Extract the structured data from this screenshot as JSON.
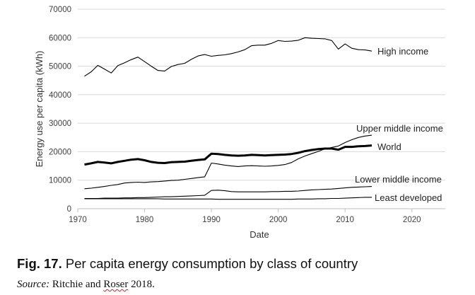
{
  "chart_data": {
    "type": "line",
    "xlabel": "Date",
    "ylabel": "Energy use per capita (kWh)",
    "xlim": [
      1970,
      2025
    ],
    "ylim": [
      0,
      70000
    ],
    "xticks": [
      "1970",
      "1980",
      "1990",
      "2000",
      "2010",
      "2020"
    ],
    "yticks": [
      "0",
      "10000",
      "20000",
      "30000",
      "40000",
      "50000",
      "60000",
      "70000"
    ],
    "grid": "horizontal",
    "legend": "direct labels at line ends",
    "series": [
      {
        "name": "High income",
        "color": "#000000",
        "emphasis": "thin",
        "x": [
          1971,
          1972,
          1973,
          1974,
          1975,
          1976,
          1977,
          1978,
          1979,
          1980,
          1981,
          1982,
          1983,
          1984,
          1985,
          1986,
          1987,
          1988,
          1989,
          1990,
          1991,
          1992,
          1993,
          1994,
          1995,
          1996,
          1997,
          1998,
          1999,
          2000,
          2001,
          2002,
          2003,
          2004,
          2005,
          2006,
          2007,
          2008,
          2009,
          2010,
          2011,
          2012,
          2013,
          2014
        ],
        "values": [
          46500,
          48000,
          50300,
          49000,
          47600,
          50200,
          51200,
          52300,
          53200,
          51600,
          50000,
          48500,
          48300,
          49900,
          50600,
          51000,
          52400,
          53600,
          54100,
          53500,
          53800,
          54000,
          54400,
          55000,
          55800,
          57200,
          57400,
          57400,
          58000,
          59000,
          58700,
          58800,
          59100,
          60000,
          59800,
          59700,
          59600,
          59000,
          56000,
          57800,
          56300,
          55800,
          55700,
          55300
        ]
      },
      {
        "name": "Upper middle income",
        "color": "#000000",
        "emphasis": "thin",
        "x": [
          1971,
          1972,
          1973,
          1974,
          1975,
          1976,
          1977,
          1978,
          1979,
          1980,
          1981,
          1982,
          1983,
          1984,
          1985,
          1986,
          1987,
          1988,
          1989,
          1990,
          1991,
          1992,
          1993,
          1994,
          1995,
          1996,
          1997,
          1998,
          1999,
          2000,
          2001,
          2002,
          2003,
          2004,
          2005,
          2006,
          2007,
          2008,
          2009,
          2010,
          2011,
          2012,
          2013,
          2014
        ],
        "values": [
          7000,
          7200,
          7500,
          7800,
          8200,
          8500,
          9000,
          9200,
          9300,
          9200,
          9400,
          9500,
          9700,
          9900,
          10000,
          10300,
          10600,
          10900,
          11200,
          16000,
          15700,
          15300,
          15000,
          14800,
          15000,
          15100,
          15000,
          14900,
          15000,
          15200,
          15500,
          16200,
          17500,
          18500,
          19300,
          20100,
          21000,
          21500,
          22000,
          23200,
          24200,
          25000,
          25500,
          25800
        ]
      },
      {
        "name": "World",
        "color": "#000000",
        "emphasis": "thick",
        "x": [
          1971,
          1972,
          1973,
          1974,
          1975,
          1976,
          1977,
          1978,
          1979,
          1980,
          1981,
          1982,
          1983,
          1984,
          1985,
          1986,
          1987,
          1988,
          1989,
          1990,
          1991,
          1992,
          1993,
          1994,
          1995,
          1996,
          1997,
          1998,
          1999,
          2000,
          2001,
          2002,
          2003,
          2004,
          2005,
          2006,
          2007,
          2008,
          2009,
          2010,
          2011,
          2012,
          2013,
          2014
        ],
        "values": [
          15500,
          15900,
          16400,
          16200,
          15900,
          16400,
          16800,
          17200,
          17400,
          17000,
          16400,
          16100,
          16000,
          16300,
          16400,
          16500,
          16800,
          17100,
          17300,
          19300,
          19200,
          18900,
          18700,
          18600,
          18700,
          18900,
          18800,
          18700,
          18800,
          18900,
          19000,
          19200,
          19600,
          20200,
          20600,
          20900,
          21100,
          21100,
          20700,
          21700,
          21700,
          21900,
          22000,
          22200
        ]
      },
      {
        "name": "Lower middle income",
        "color": "#000000",
        "emphasis": "thin",
        "x": [
          1971,
          1972,
          1973,
          1974,
          1975,
          1976,
          1977,
          1978,
          1979,
          1980,
          1981,
          1982,
          1983,
          1984,
          1985,
          1986,
          1987,
          1988,
          1989,
          1990,
          1991,
          1992,
          1993,
          1994,
          1995,
          1996,
          1997,
          1998,
          1999,
          2000,
          2001,
          2002,
          2003,
          2004,
          2005,
          2006,
          2007,
          2008,
          2009,
          2010,
          2011,
          2012,
          2013,
          2014
        ],
        "values": [
          3600,
          3600,
          3600,
          3700,
          3700,
          3700,
          3800,
          3800,
          3900,
          3900,
          4000,
          4100,
          4200,
          4200,
          4300,
          4400,
          4500,
          4600,
          4700,
          6400,
          6500,
          6300,
          6000,
          5900,
          5900,
          5900,
          5900,
          5900,
          6000,
          6000,
          6100,
          6100,
          6200,
          6400,
          6600,
          6700,
          6800,
          6900,
          7100,
          7300,
          7500,
          7600,
          7700,
          7800
        ]
      },
      {
        "name": "Least developed",
        "color": "#000000",
        "emphasis": "thin",
        "x": [
          1971,
          1972,
          1973,
          1974,
          1975,
          1976,
          1977,
          1978,
          1979,
          1980,
          1981,
          1982,
          1983,
          1984,
          1985,
          1986,
          1987,
          1988,
          1989,
          1990,
          1991,
          1992,
          1993,
          1994,
          1995,
          1996,
          1997,
          1998,
          1999,
          2000,
          2001,
          2002,
          2003,
          2004,
          2005,
          2006,
          2007,
          2008,
          2009,
          2010,
          2011,
          2012,
          2013,
          2014
        ],
        "values": [
          3500,
          3500,
          3500,
          3500,
          3500,
          3500,
          3500,
          3500,
          3500,
          3500,
          3500,
          3500,
          3400,
          3400,
          3400,
          3400,
          3400,
          3400,
          3400,
          3400,
          3300,
          3300,
          3300,
          3300,
          3300,
          3300,
          3300,
          3300,
          3300,
          3300,
          3300,
          3300,
          3400,
          3400,
          3400,
          3500,
          3500,
          3600,
          3600,
          3700,
          3800,
          3900,
          4000,
          4000
        ]
      }
    ]
  },
  "caption": {
    "prefix": "Fig. 17.",
    "text": " Per capita energy consumption by class of country"
  },
  "source": {
    "label": "Source:",
    "text_before": " Ritchie and ",
    "flagged_word": "Roser",
    "text_after": " 2018."
  }
}
